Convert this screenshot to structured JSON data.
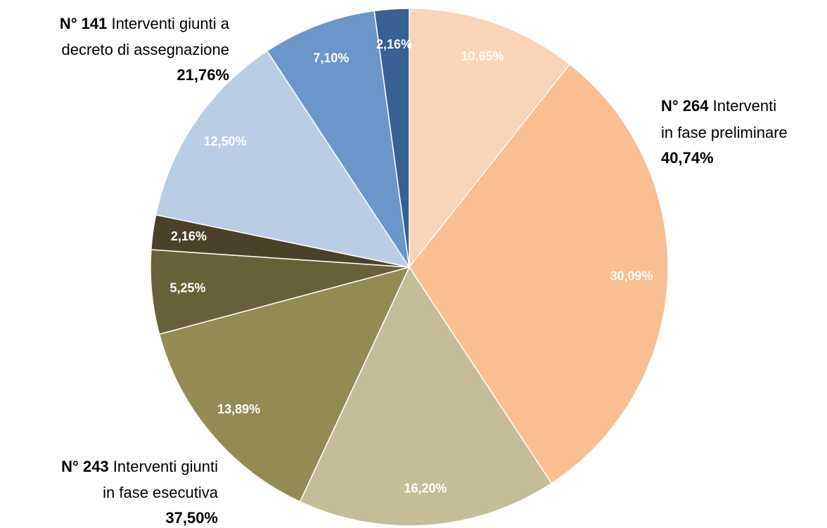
{
  "chart_data": {
    "type": "pie",
    "values": [
      10.65,
      30.09,
      16.2,
      13.89,
      5.25,
      2.16,
      12.5,
      7.1,
      2.16
    ],
    "value_labels": [
      "10,65%",
      "30,09%",
      "16,20%",
      "13,89%",
      "5,25%",
      "2,16%",
      "12,50%",
      "7,10%",
      "2,16%"
    ],
    "colors": [
      "#fad4b6",
      "#f9be91",
      "#c4bd97",
      "#948a54",
      "#686038",
      "#4a4128",
      "#b9cde5",
      "#6b96c9",
      "#386093"
    ],
    "annotations": [
      {
        "number": "N° 264",
        "lines": [
          "Interventi",
          "in fase preliminare"
        ],
        "percent": "40,74%"
      },
      {
        "number": "N° 243",
        "lines": [
          "Interventi giunti",
          "in fase esecutiva"
        ],
        "percent": "37,50%"
      },
      {
        "number": "N° 141",
        "lines": [
          "Interventi giunti a",
          "decreto di assegnazione"
        ],
        "percent": "21,76%"
      }
    ]
  }
}
